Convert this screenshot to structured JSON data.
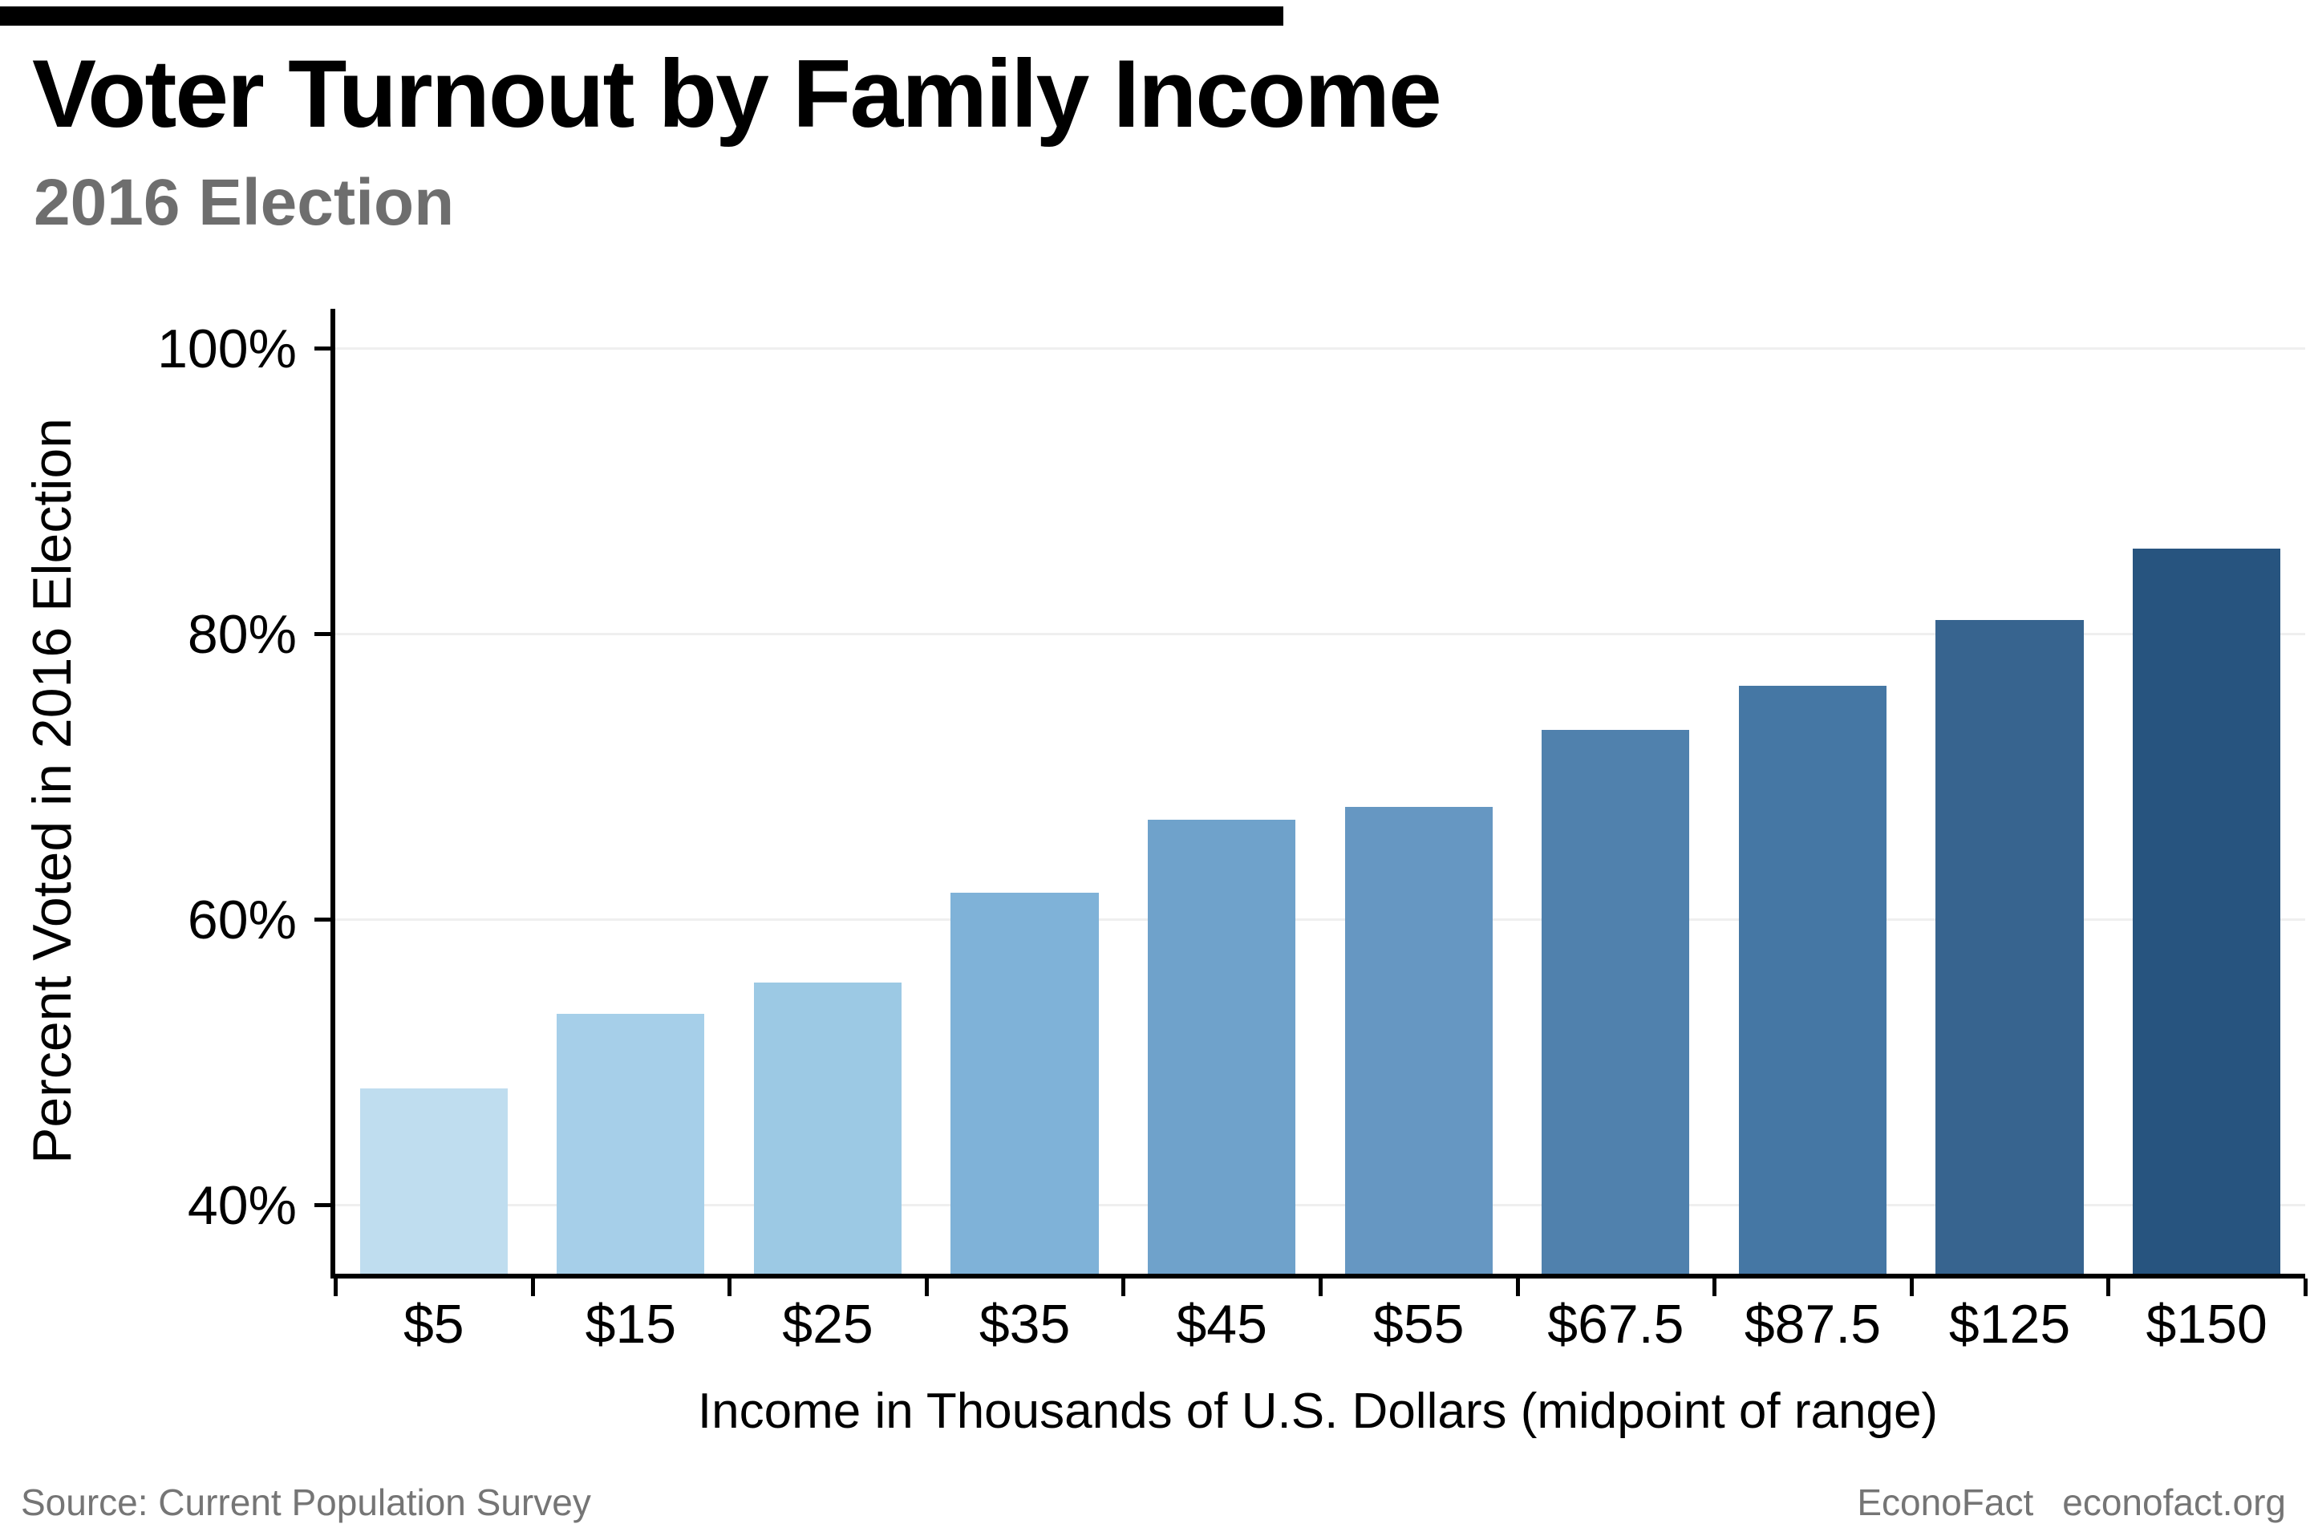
{
  "header": {
    "title": "Voter Turnout by Family Income",
    "subtitle": "2016 Election"
  },
  "footer": {
    "source": "Source: Current Population Survey",
    "brand": "EconoFact",
    "site": "econofact.org"
  },
  "chart_data": {
    "type": "bar",
    "title": "Voter Turnout by Family Income",
    "subtitle": "2016 Election",
    "xlabel": "Income in Thousands of U.S. Dollars (midpoint of range)",
    "ylabel": "Percent Voted in 2016 Election",
    "categories": [
      "$5",
      "$15",
      "$25",
      "$35",
      "$45",
      "$55",
      "$67.5",
      "$87.5",
      "$125",
      "$150"
    ],
    "values": [
      48.2,
      53.4,
      55.6,
      61.9,
      67.0,
      67.9,
      73.3,
      76.4,
      81.0,
      86.0
    ],
    "bar_colors": [
      "#BFDDEF",
      "#A6CFE9",
      "#9CC9E4",
      "#7FB2D8",
      "#6FA2CB",
      "#6697C2",
      "#5081AD",
      "#4577A4",
      "#37648F",
      "#27547F"
    ],
    "yticks": [
      {
        "value": 40,
        "label": "40%"
      },
      {
        "value": 60,
        "label": "60%"
      },
      {
        "value": 80,
        "label": "80%"
      },
      {
        "value": 100,
        "label": "100%"
      }
    ],
    "ylim": [
      35.2,
      102.8
    ],
    "grid": "horizontal",
    "grid_color": "#efefef",
    "axis_color": "#000000",
    "legend": "none"
  }
}
